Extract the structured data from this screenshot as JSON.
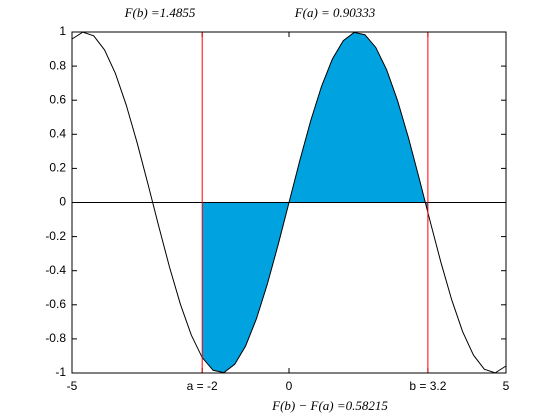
{
  "chart_data": {
    "type": "line",
    "annotations": [
      "F(b) =1.4855",
      "F(a) = 0.90333"
    ],
    "xlabel": "F(b) − F(a) =0.58215",
    "xlim": [
      -5,
      5
    ],
    "xticks": [
      -5,
      {
        "value": -2,
        "label": "a = -2"
      },
      0,
      {
        "value": 3.2,
        "label": "b = 3.2"
      },
      5
    ],
    "ylim": [
      -1,
      1
    ],
    "yticks": [
      -1,
      -0.8,
      -0.6,
      -0.4,
      -0.2,
      0,
      0.2,
      0.4,
      0.6,
      0.8,
      1
    ],
    "vline_color": "#ff0000",
    "series": [
      {
        "color": "#000000",
        "x": [
          -5,
          -4.75,
          -4.5,
          -4.25,
          -4,
          -3.75,
          -3.5,
          -3.25,
          -3,
          -2.75,
          -2.5,
          -2.25,
          -2,
          -1.75,
          -1.5,
          -1.25,
          -1,
          -0.75,
          -0.5,
          -0.25,
          0,
          0.25,
          0.5,
          0.75,
          1,
          1.25,
          1.5,
          1.75,
          2,
          2.25,
          2.5,
          2.75,
          3,
          3.25,
          3.5,
          3.75,
          4,
          4.25,
          4.5,
          4.75,
          5
        ],
        "values": [
          0.9589,
          0.9993,
          0.9775,
          0.895,
          0.7568,
          0.5716,
          0.3508,
          0.1082,
          -0.1411,
          -0.3817,
          -0.5985,
          -0.7781,
          -0.9093,
          -0.984,
          -0.9975,
          -0.949,
          -0.8415,
          -0.6816,
          -0.4794,
          -0.2474,
          0,
          0.2474,
          0.4794,
          0.6816,
          0.8415,
          0.949,
          0.9975,
          0.984,
          0.9093,
          0.7781,
          0.5985,
          0.3817,
          0.1411,
          -0.1082,
          -0.3508,
          -0.5716,
          -0.7568,
          -0.895,
          -0.9775,
          -0.9993,
          -0.9589
        ]
      },
      {
        "color": "#00a2df",
        "fill": true,
        "x": [
          -2,
          -1.75,
          -1.5,
          -1.25,
          -1,
          -0.75,
          -0.5,
          -0.25,
          0,
          0.25,
          0.5,
          0.75,
          1,
          1.25,
          1.5,
          1.75,
          2,
          2.25,
          2.5,
          2.75,
          3,
          3.2
        ],
        "values": [
          -0.9093,
          -0.984,
          -0.9975,
          -0.949,
          -0.8415,
          -0.6816,
          -0.4794,
          -0.2474,
          0,
          0.2474,
          0.4794,
          0.6816,
          0.8415,
          0.949,
          0.9975,
          0.984,
          0.9093,
          0.7781,
          0.5985,
          0.3817,
          0.1411,
          -0.0584
        ]
      }
    ]
  }
}
